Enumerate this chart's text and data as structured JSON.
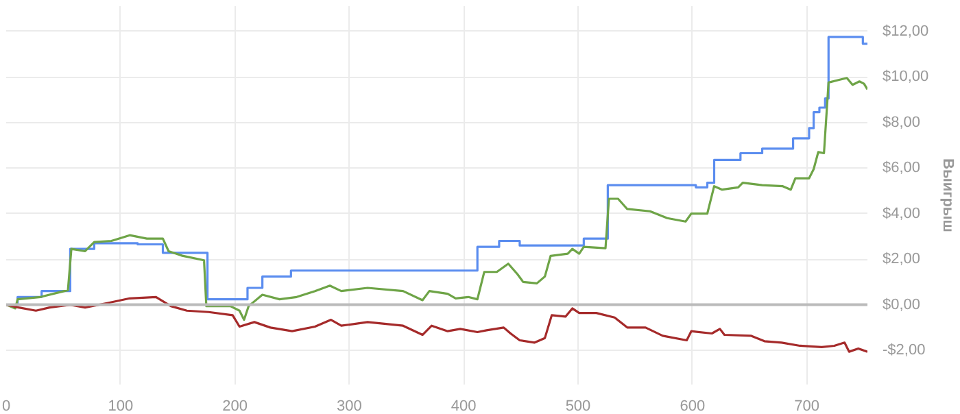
{
  "chart_data": {
    "type": "line",
    "ylabel": "Выигрыш",
    "xlim": [
      0,
      753
    ],
    "xticks": [
      0,
      100,
      200,
      300,
      400,
      500,
      600,
      700
    ],
    "ylim": [
      -3.5,
      13.1
    ],
    "yticks": [
      {
        "value": -2,
        "label": "-$2,00"
      },
      {
        "value": 0,
        "label": "$0,00"
      },
      {
        "value": 2,
        "label": "$2,00"
      },
      {
        "value": 4,
        "label": "$4,00"
      },
      {
        "value": 6,
        "label": "$6,00"
      },
      {
        "value": 8,
        "label": "$8,00"
      },
      {
        "value": 10,
        "label": "$10,00"
      },
      {
        "value": 12,
        "label": "$12,00"
      }
    ],
    "grid": true,
    "marker": "none",
    "line_style": "solid",
    "ref_lines": [
      {
        "axis": "y",
        "value": 0,
        "color": "#bbbbbb"
      }
    ],
    "series": [
      {
        "type": "step",
        "color": "#5b8def",
        "x": [
          0,
          10,
          31,
          56,
          77,
          115,
          137,
          176,
          211,
          224,
          249,
          412,
          431,
          449,
          505,
          526,
          603,
          613,
          619,
          642,
          661,
          688,
          702,
          706,
          711,
          716,
          719,
          749,
          753
        ],
        "values": [
          0,
          0.34,
          0.6,
          2.45,
          2.7,
          2.65,
          2.28,
          0.24,
          0.74,
          1.24,
          1.5,
          2.54,
          2.8,
          2.6,
          2.9,
          5.25,
          5.15,
          5.35,
          6.35,
          6.65,
          6.85,
          7.3,
          7.75,
          8.45,
          8.65,
          9.05,
          11.75,
          11.45,
          11.45
        ]
      },
      {
        "color": "#6ea447",
        "x": [
          0,
          8,
          10,
          30,
          46,
          54,
          57,
          69,
          77,
          92,
          108,
          123,
          137,
          142,
          154,
          173,
          175,
          196,
          204,
          208,
          212,
          224,
          239,
          254,
          270,
          283,
          293,
          316,
          347,
          364,
          370,
          386,
          393,
          404,
          412,
          418,
          429,
          439,
          447,
          452,
          464,
          471,
          476,
          491,
          495,
          501,
          505,
          524,
          527,
          535,
          543,
          563,
          578,
          594,
          599,
          613,
          619,
          626,
          640,
          644,
          661,
          679,
          686,
          690,
          702,
          706,
          710,
          715,
          719,
          727,
          735,
          740,
          746,
          750,
          753
        ],
        "values": [
          0,
          -0.16,
          0.24,
          0.34,
          0.54,
          0.64,
          2.45,
          2.35,
          2.75,
          2.8,
          3.05,
          2.9,
          2.9,
          2.35,
          2.15,
          1.95,
          -0.06,
          -0.06,
          -0.26,
          -0.66,
          -0.06,
          0.44,
          0.24,
          0.34,
          0.6,
          0.84,
          0.6,
          0.74,
          0.6,
          0.2,
          0.6,
          0.48,
          0.28,
          0.34,
          0.24,
          1.44,
          1.44,
          1.8,
          1.34,
          1.0,
          0.94,
          1.24,
          2.14,
          2.24,
          2.45,
          2.24,
          2.54,
          2.48,
          4.65,
          4.65,
          4.2,
          4.1,
          3.8,
          3.65,
          4.0,
          4.0,
          5.2,
          5.05,
          5.15,
          5.35,
          5.25,
          5.2,
          5.05,
          5.55,
          5.55,
          5.95,
          6.7,
          6.65,
          9.75,
          9.85,
          9.95,
          9.65,
          9.8,
          9.7,
          9.45
        ]
      },
      {
        "color": "#a52a2a",
        "x": [
          0,
          11,
          26,
          38,
          56,
          69,
          89,
          108,
          131,
          144,
          158,
          177,
          198,
          204,
          217,
          231,
          250,
          270,
          284,
          293,
          316,
          347,
          364,
          372,
          386,
          397,
          412,
          420,
          435,
          441,
          449,
          462,
          471,
          477,
          489,
          495,
          501,
          516,
          532,
          543,
          559,
          574,
          595,
          599,
          617,
          624,
          628,
          651,
          663,
          678,
          694,
          713,
          724,
          733,
          737,
          745,
          753
        ],
        "values": [
          0,
          -0.12,
          -0.26,
          -0.12,
          0,
          -0.12,
          0.08,
          0.28,
          0.34,
          -0.06,
          -0.26,
          -0.32,
          -0.46,
          -0.96,
          -0.76,
          -1.0,
          -1.16,
          -0.96,
          -0.66,
          -0.92,
          -0.76,
          -0.92,
          -1.32,
          -0.92,
          -1.16,
          -1.06,
          -1.2,
          -1.12,
          -1.0,
          -1.26,
          -1.56,
          -1.66,
          -1.46,
          -0.46,
          -0.52,
          -0.16,
          -0.36,
          -0.36,
          -0.56,
          -1.0,
          -1.0,
          -1.36,
          -1.56,
          -1.16,
          -1.26,
          -1.06,
          -1.32,
          -1.36,
          -1.6,
          -1.66,
          -1.8,
          -1.86,
          -1.8,
          -1.66,
          -2.06,
          -1.92,
          -2.06
        ]
      }
    ]
  }
}
